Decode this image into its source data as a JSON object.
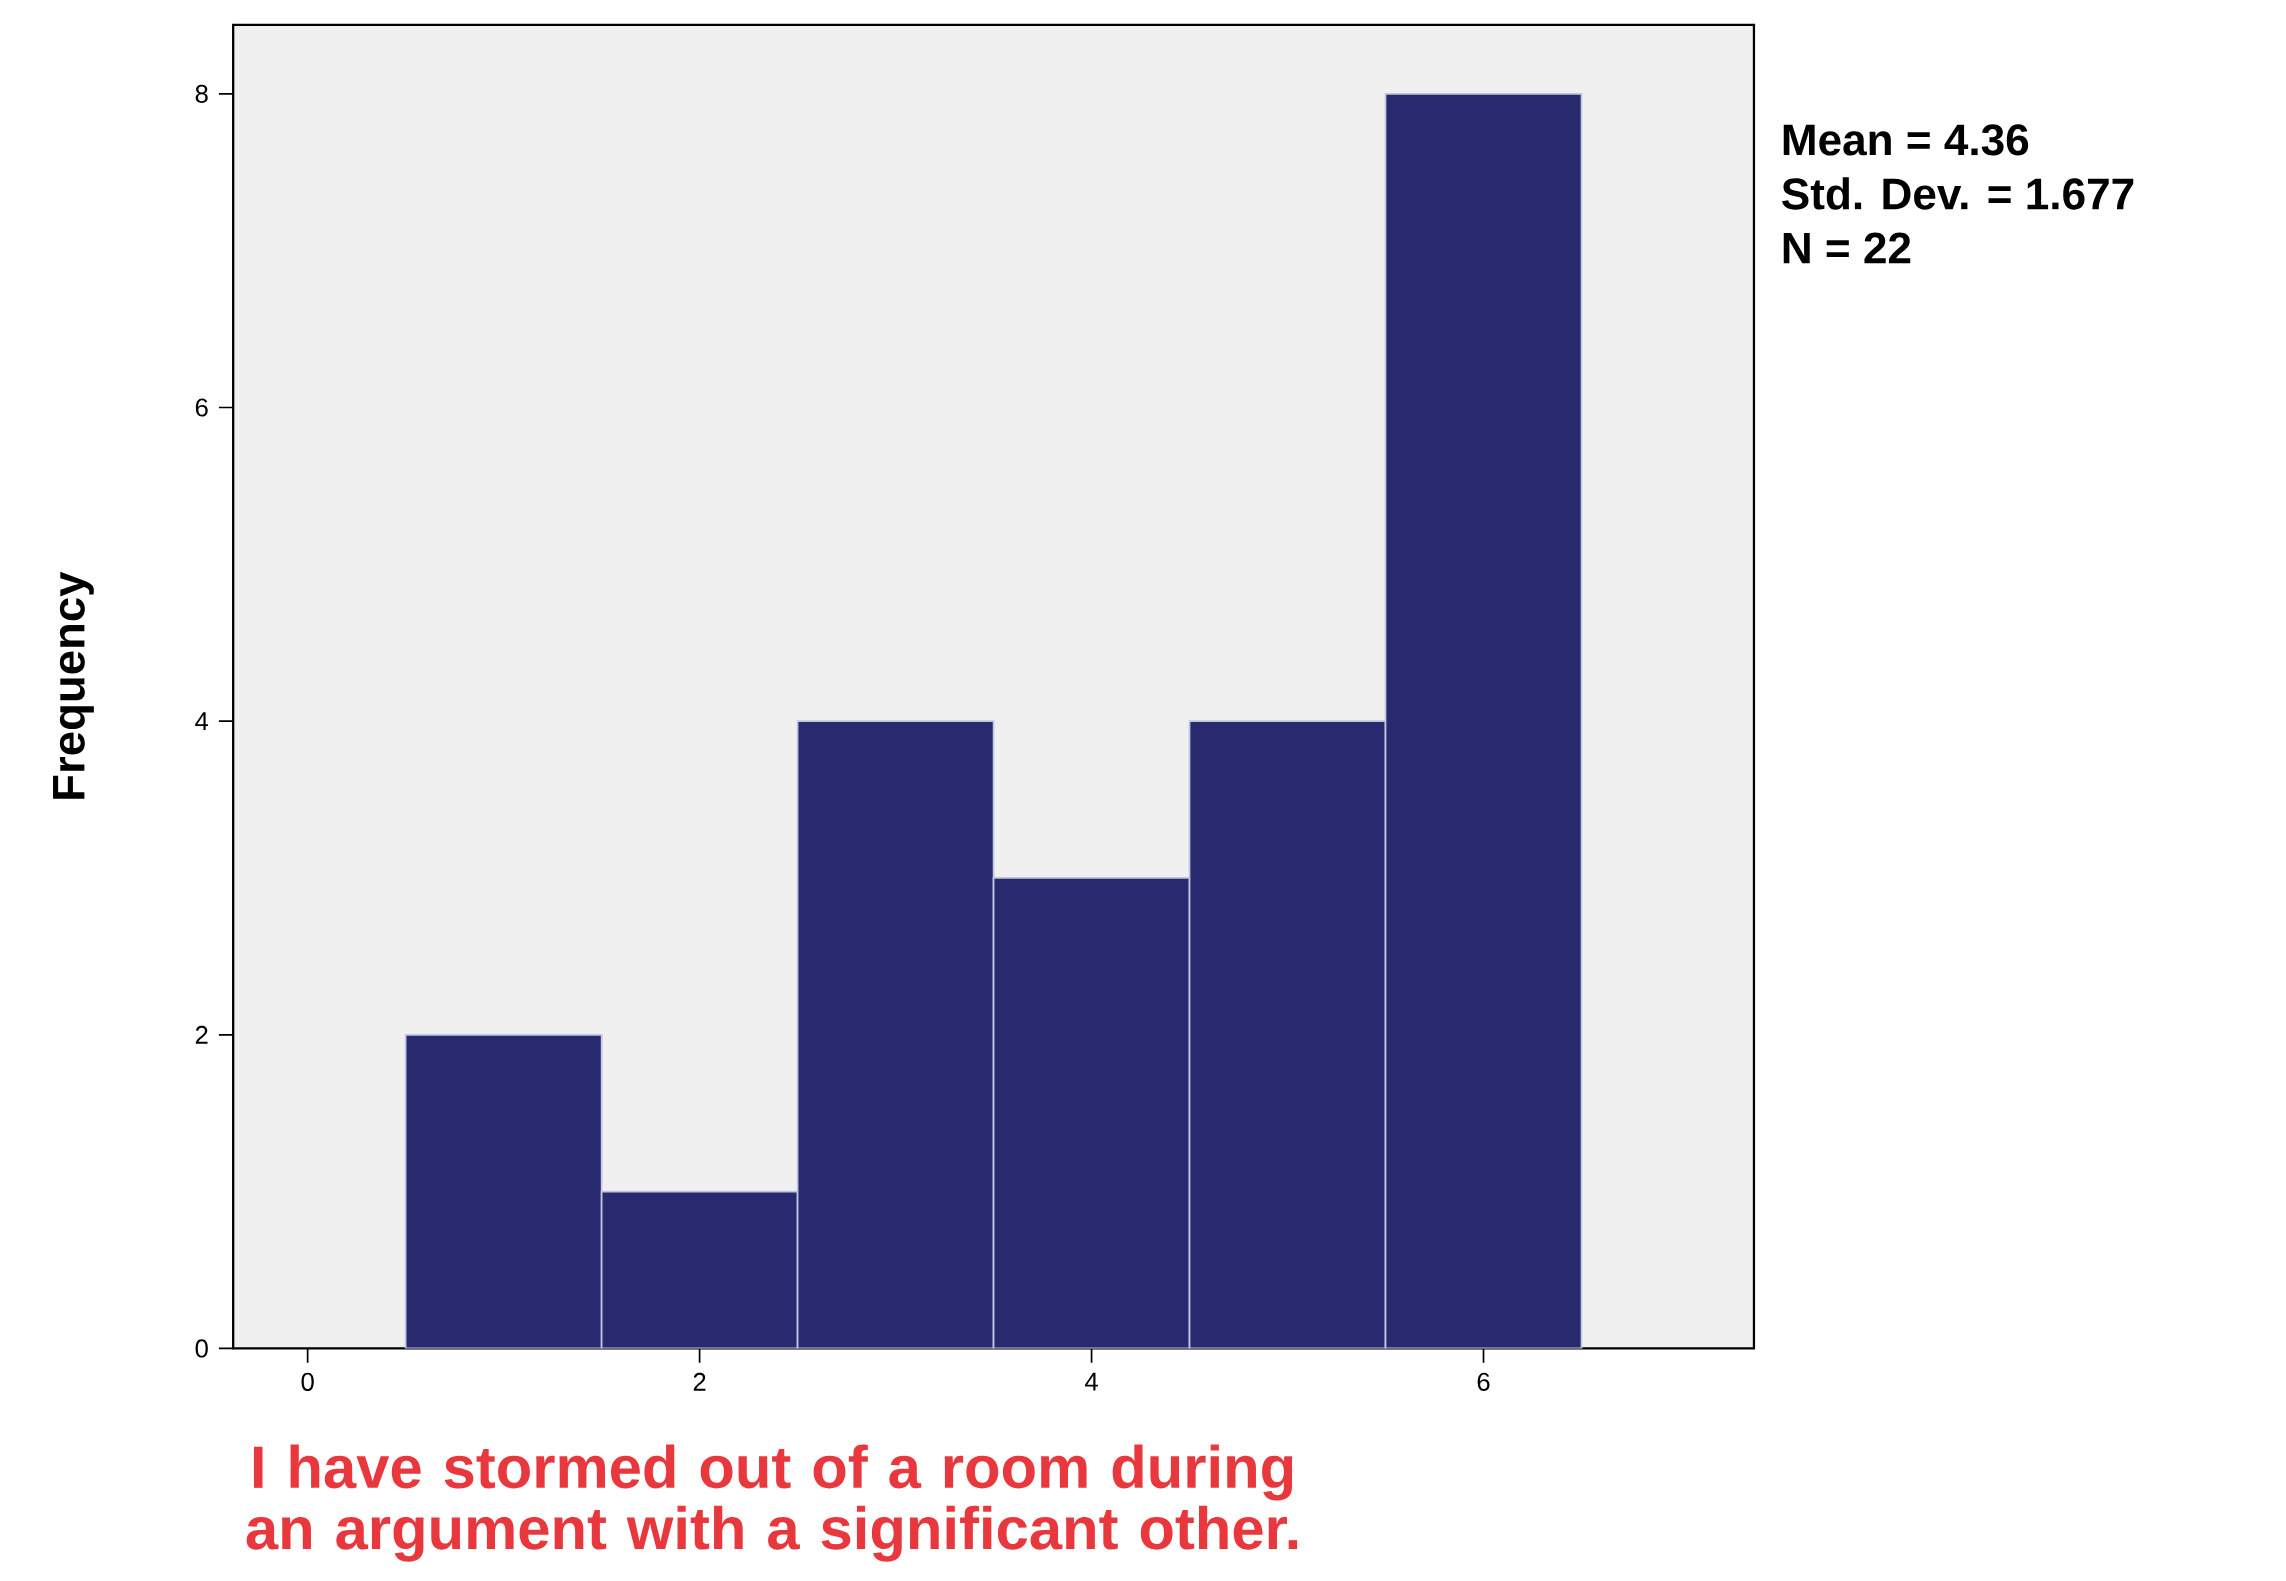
{
  "chart_data": {
    "type": "histogram",
    "xlabel": "I have stormed out of a room during an argument with a significant other.",
    "ylabel": "Frequency",
    "annotations": [
      "Mean = 4.36",
      "Std. Dev. = 1.677",
      "N = 22"
    ],
    "bins": [
      0.5,
      1.5,
      2.5,
      3.5,
      4.5,
      5.5,
      6.5
    ],
    "values": [
      2,
      1,
      4,
      3,
      4,
      8
    ],
    "color": "#29296f",
    "xlim": [
      -0.38,
      7.38
    ],
    "ylim": [
      0,
      8.44
    ],
    "xticks": [
      0,
      2,
      4,
      6
    ],
    "yticks": [
      0,
      2,
      4,
      6,
      8
    ],
    "grid": false
  }
}
